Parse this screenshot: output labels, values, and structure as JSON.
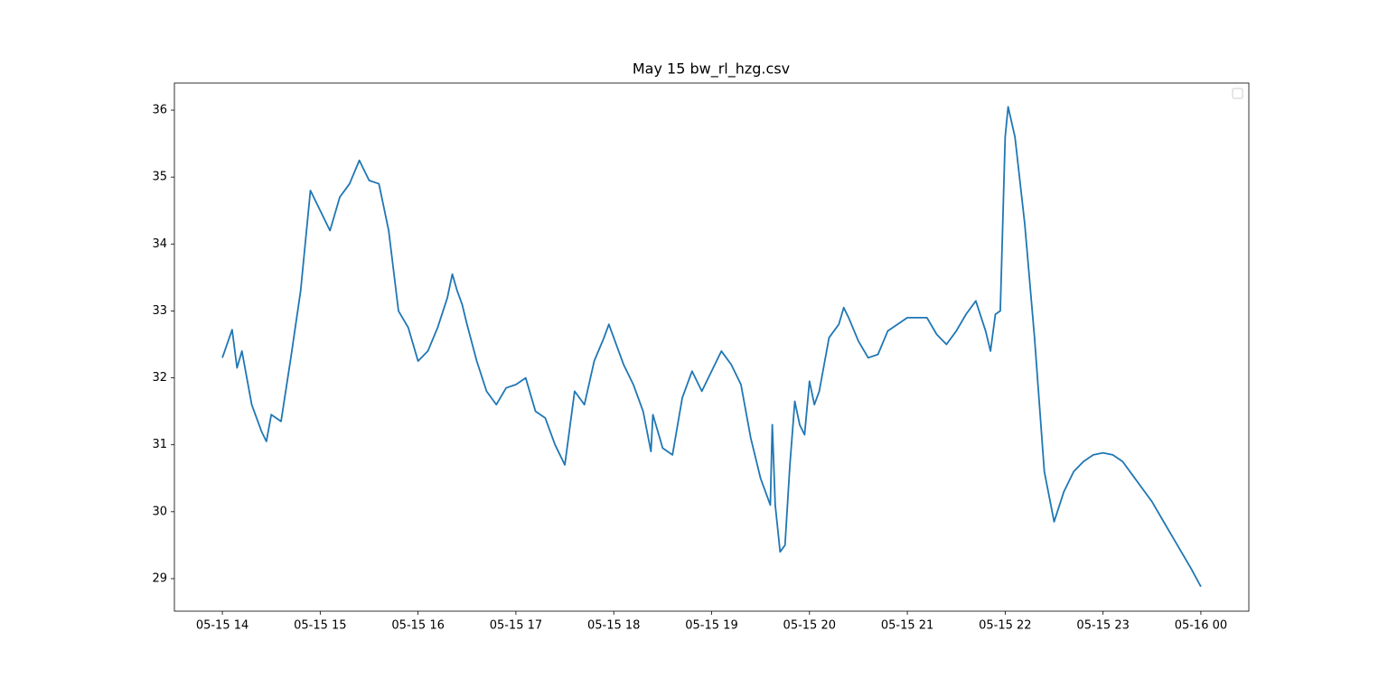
{
  "chart_data": {
    "type": "line",
    "title": "May 15 bw_rl_hzg.csv",
    "x": [
      14.0,
      14.1,
      14.15,
      14.2,
      14.3,
      14.4,
      14.45,
      14.5,
      14.6,
      14.7,
      14.8,
      14.9,
      15.0,
      15.1,
      15.2,
      15.3,
      15.4,
      15.5,
      15.6,
      15.7,
      15.8,
      15.9,
      16.0,
      16.1,
      16.2,
      16.3,
      16.35,
      16.4,
      16.45,
      16.5,
      16.6,
      16.7,
      16.8,
      16.9,
      17.0,
      17.1,
      17.2,
      17.3,
      17.4,
      17.5,
      17.6,
      17.7,
      17.8,
      17.9,
      17.95,
      18.0,
      18.1,
      18.2,
      18.3,
      18.38,
      18.4,
      18.5,
      18.6,
      18.7,
      18.8,
      18.9,
      19.0,
      19.1,
      19.2,
      19.3,
      19.4,
      19.5,
      19.6,
      19.62,
      19.65,
      19.7,
      19.75,
      19.8,
      19.85,
      19.9,
      19.95,
      20.0,
      20.05,
      20.1,
      20.2,
      20.3,
      20.35,
      20.4,
      20.5,
      20.6,
      20.7,
      20.8,
      20.9,
      21.0,
      21.1,
      21.2,
      21.3,
      21.4,
      21.5,
      21.6,
      21.7,
      21.8,
      21.85,
      21.9,
      21.95,
      22.0,
      22.03,
      22.1,
      22.2,
      22.3,
      22.4,
      22.5,
      22.6,
      22.7,
      22.8,
      22.9,
      23.0,
      23.1,
      23.2,
      23.3,
      23.4,
      23.5,
      23.6,
      23.7,
      23.8,
      23.9,
      24.0
    ],
    "series": [
      {
        "color": "#1f77b4",
        "values": [
          32.3,
          32.72,
          32.15,
          32.4,
          31.6,
          31.2,
          31.05,
          31.45,
          31.35,
          32.3,
          33.3,
          34.8,
          34.5,
          34.2,
          34.7,
          34.9,
          35.25,
          34.95,
          34.9,
          34.2,
          33.0,
          32.75,
          32.25,
          32.4,
          32.75,
          33.2,
          33.55,
          33.3,
          33.1,
          32.8,
          32.25,
          31.8,
          31.6,
          31.85,
          31.9,
          32.0,
          31.5,
          31.4,
          31.0,
          30.7,
          31.8,
          31.6,
          32.25,
          32.6,
          32.8,
          32.6,
          32.2,
          31.9,
          31.5,
          30.9,
          31.45,
          30.95,
          30.85,
          31.7,
          32.1,
          31.8,
          32.1,
          32.4,
          32.2,
          31.9,
          31.1,
          30.5,
          30.1,
          31.3,
          30.1,
          29.4,
          29.5,
          30.7,
          31.65,
          31.3,
          31.15,
          31.95,
          31.6,
          31.8,
          32.6,
          32.8,
          33.05,
          32.9,
          32.55,
          32.3,
          32.35,
          32.7,
          32.8,
          32.9,
          32.9,
          32.9,
          32.65,
          32.5,
          32.7,
          32.95,
          33.15,
          32.7,
          32.4,
          32.95,
          33.0,
          35.6,
          36.05,
          35.6,
          34.3,
          32.6,
          30.6,
          29.85,
          30.3,
          30.6,
          30.75,
          30.85,
          30.88,
          30.85,
          30.75,
          30.55,
          30.35,
          30.15,
          29.9,
          29.65,
          29.4,
          29.15,
          28.88
        ]
      }
    ],
    "xlim": [
      13.51,
      24.49
    ],
    "xticks": [
      {
        "value": 14,
        "label": "05-15 14"
      },
      {
        "value": 15,
        "label": "05-15 15"
      },
      {
        "value": 16,
        "label": "05-15 16"
      },
      {
        "value": 17,
        "label": "05-15 17"
      },
      {
        "value": 18,
        "label": "05-15 18"
      },
      {
        "value": 19,
        "label": "05-15 19"
      },
      {
        "value": 20,
        "label": "05-15 20"
      },
      {
        "value": 21,
        "label": "05-15 21"
      },
      {
        "value": 22,
        "label": "05-15 22"
      },
      {
        "value": 23,
        "label": "05-15 23"
      },
      {
        "value": 24,
        "label": "05-16 00"
      }
    ],
    "ylim": [
      28.514,
      36.405
    ],
    "yticks": [
      29,
      30,
      31,
      32,
      33,
      34,
      35,
      36
    ],
    "grid": false
  }
}
